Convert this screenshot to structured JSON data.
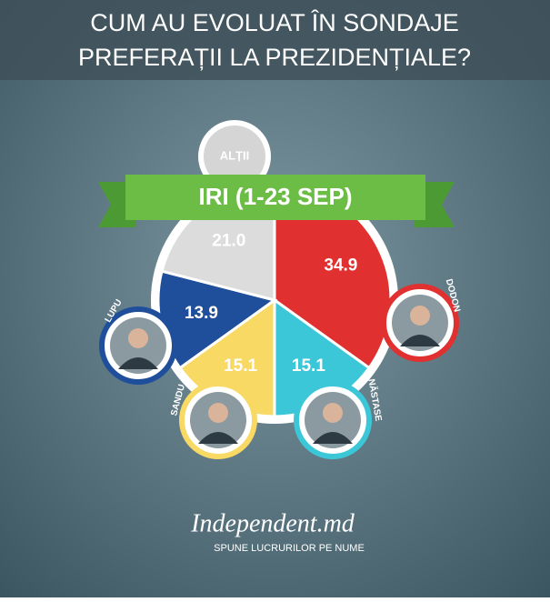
{
  "title_lines": [
    "CUM AU EVOLUAT ÎN SONDAJE",
    "PREFERAȚII LA PREZIDENȚIALE?"
  ],
  "chart_data": {
    "type": "pie",
    "subtitle": "IRI (1-23 SEP)",
    "categories": [
      "DODON",
      "NĂSTASE",
      "SANDU",
      "LUPU",
      "ALȚII"
    ],
    "values": [
      34.9,
      15.1,
      15.1,
      13.9,
      21.0
    ],
    "value_labels": [
      "34.9",
      "15.1",
      "15.1",
      "13.9",
      "21.0"
    ],
    "colors": [
      "#e03030",
      "#3cc7d8",
      "#f7d964",
      "#1f4f9a",
      "#dcdcdc"
    ]
  },
  "footer": {
    "brand": "Independent.md",
    "slogan": "SPUNE LUCRURILOR PE NUME"
  }
}
